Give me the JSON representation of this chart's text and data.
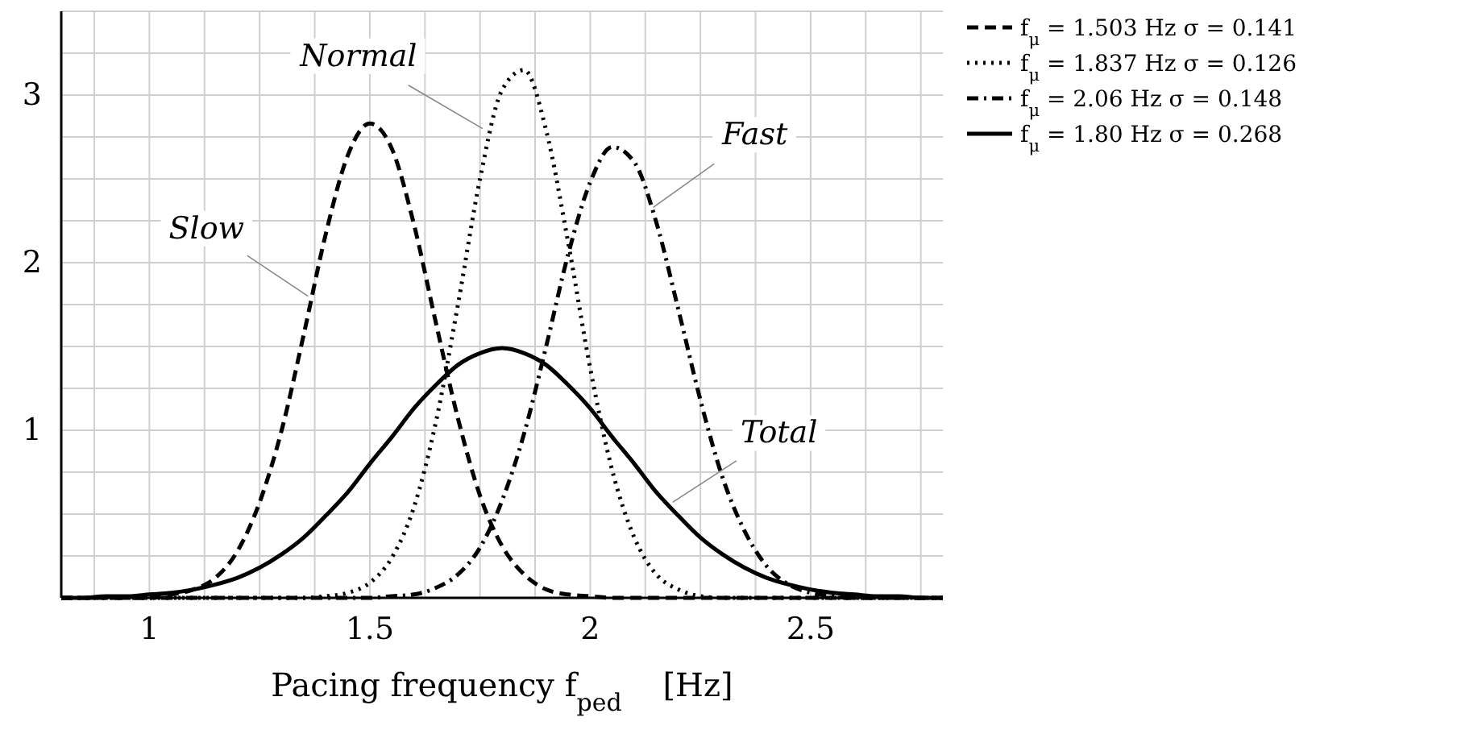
{
  "chart_data": {
    "type": "line",
    "xlabel": "Pacing frequency f$_{ped}$    [Hz]",
    "x": [
      0.8,
      0.85,
      0.9,
      0.95,
      1,
      1.05,
      1.1,
      1.15,
      1.2,
      1.25,
      1.3,
      1.35,
      1.4,
      1.45,
      1.5,
      1.55,
      1.6,
      1.65,
      1.7,
      1.75,
      1.8,
      1.85,
      1.9,
      1.95,
      2,
      2.05,
      2.1,
      2.15,
      2.2,
      2.25,
      2.3,
      2.35,
      2.4,
      2.45,
      2.5,
      2.55,
      2.6,
      2.65,
      2.7,
      2.75,
      2.8
    ],
    "series": [
      {
        "name": "f$_{μ}$ = 1.503 Hz σ = 0.141",
        "color": "#000000",
        "line_style": "dashed",
        "values": [
          0,
          0,
          0,
          0,
          0,
          0.02,
          0.05,
          0.12,
          0.28,
          0.57,
          1.0,
          1.57,
          2.17,
          2.64,
          2.83,
          2.68,
          2.23,
          1.64,
          1.07,
          0.61,
          0.31,
          0.14,
          0.05,
          0.02,
          0.01,
          0,
          0,
          0,
          0,
          0,
          0,
          0,
          0,
          0,
          0,
          0,
          0,
          0,
          0,
          0,
          0
        ]
      },
      {
        "name": "f$_{μ}$ = 1.837 Hz σ = 0.126",
        "color": "#000000",
        "line_style": "dotted",
        "values": [
          0,
          0,
          0,
          0,
          0,
          0,
          0,
          0,
          0,
          0,
          0,
          0,
          0.01,
          0.03,
          0.09,
          0.24,
          0.54,
          1.05,
          1.75,
          2.5,
          3.03,
          3.15,
          2.79,
          2.12,
          1.37,
          0.76,
          0.36,
          0.14,
          0.05,
          0.01,
          0,
          0,
          0,
          0,
          0,
          0,
          0,
          0,
          0,
          0,
          0
        ]
      },
      {
        "name": "f$_{μ}$ = 2.06 Hz σ = 0.148",
        "color": "#000000",
        "line_style": "dashdot",
        "values": [
          0,
          0,
          0,
          0,
          0,
          0,
          0,
          0,
          0,
          0,
          0,
          0,
          0,
          0,
          0,
          0.01,
          0.02,
          0.06,
          0.14,
          0.3,
          0.58,
          0.98,
          1.5,
          2.05,
          2.48,
          2.69,
          2.6,
          2.24,
          1.72,
          1.18,
          0.72,
          0.4,
          0.19,
          0.08,
          0.03,
          0.01,
          0,
          0,
          0,
          0,
          0
        ]
      },
      {
        "name": "f$_{μ}$ = 1.80 Hz σ = 0.268",
        "color": "#000000",
        "line_style": "solid",
        "values": [
          0,
          0,
          0.01,
          0.01,
          0.02,
          0.03,
          0.05,
          0.08,
          0.12,
          0.18,
          0.26,
          0.36,
          0.49,
          0.63,
          0.8,
          0.96,
          1.13,
          1.27,
          1.39,
          1.46,
          1.49,
          1.46,
          1.39,
          1.27,
          1.13,
          0.96,
          0.8,
          0.63,
          0.49,
          0.36,
          0.26,
          0.18,
          0.12,
          0.08,
          0.05,
          0.03,
          0.02,
          0.01,
          0.01,
          0,
          0
        ]
      }
    ],
    "xlim": [
      0.8,
      2.8
    ],
    "xticks": [
      {
        "value": 0.875,
        "label": null
      },
      1,
      {
        "value": 1.125,
        "label": null
      },
      {
        "value": 1.25,
        "label": null
      },
      {
        "value": 1.375,
        "label": null
      },
      1.5,
      {
        "value": 1.625,
        "label": null
      },
      {
        "value": 1.75,
        "label": null
      },
      {
        "value": 1.875,
        "label": null
      },
      2,
      {
        "value": 2.125,
        "label": null
      },
      {
        "value": 2.25,
        "label": null
      },
      {
        "value": 2.375,
        "label": null
      },
      2.5,
      {
        "value": 2.625,
        "label": null
      },
      {
        "value": 2.75,
        "label": null
      }
    ],
    "ylim": [
      0,
      3.5
    ],
    "yticks": [
      {
        "value": 0.25,
        "label": null
      },
      {
        "value": 0.5,
        "label": null
      },
      {
        "value": 0.75,
        "label": null
      },
      1,
      {
        "value": 1.25,
        "label": null
      },
      {
        "value": 1.5,
        "label": null
      },
      {
        "value": 1.75,
        "label": null
      },
      2,
      {
        "value": 2.25,
        "label": null
      },
      {
        "value": 2.5,
        "label": null
      },
      {
        "value": 2.75,
        "label": null
      },
      3,
      {
        "value": 3.25,
        "label": null
      },
      {
        "value": 3.5,
        "label": null
      }
    ],
    "grid": true,
    "legend": "top right",
    "annotations": [
      {
        "text": "Slow",
        "x": 1.36,
        "y": 1.8
      },
      {
        "text": "Normal",
        "x": 1.756,
        "y": 2.8
      },
      {
        "text": "Fast",
        "x": 2.143,
        "y": 2.33
      },
      {
        "text": "Total",
        "x": 2.187,
        "y": 0.57
      }
    ]
  }
}
